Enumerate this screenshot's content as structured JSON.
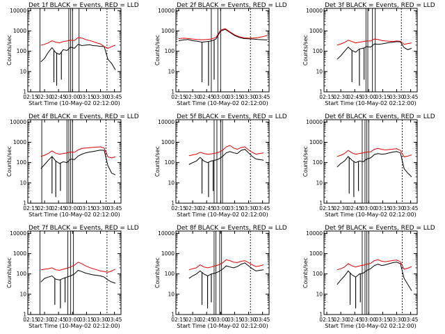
{
  "figure": {
    "xlabel": "Start Time (10-May-02 02:12:00)",
    "ylabel": "Counts/sec",
    "x_ticks": [
      "02:15",
      "02:30",
      "02:45",
      "03:00",
      "03:15",
      "03:30",
      "03:45"
    ],
    "y_ticks": [
      "1",
      "10",
      "100",
      "1000",
      "10000"
    ],
    "colors": {
      "events": "#000000",
      "lld": "#e00000",
      "axes": "#000000",
      "background": "#ffffff"
    }
  },
  "chart_data": [
    {
      "type": "line",
      "title": "Det 1f BLACK = Events, RED = LLD",
      "xlabel": "Start Time (10-May-02 02:12:00)",
      "ylabel": "Counts/sec",
      "x": [
        "02:26",
        "02:30",
        "02:34",
        "02:38",
        "02:42",
        "02:46",
        "02:50",
        "02:54",
        "02:58",
        "03:02",
        "03:06",
        "03:10",
        "03:14",
        "03:18",
        "03:22",
        "03:26",
        "03:30",
        "03:34",
        "03:38",
        "03:42",
        "03:46"
      ],
      "xlim": [
        "02:12",
        "03:52"
      ],
      "ylim": [
        1,
        13000
      ],
      "yscale": "log",
      "series": [
        {
          "name": "BLACK = Events",
          "color": "#000000",
          "values": [
            30,
            45,
            90,
            150,
            85,
            70,
            120,
            110,
            160,
            140,
            220,
            190,
            200,
            210,
            190,
            185,
            175,
            170,
            40,
            25,
            12
          ]
        },
        {
          "name": "RED = LLD",
          "color": "#e00000",
          "values": [
            200,
            220,
            260,
            330,
            280,
            260,
            300,
            320,
            350,
            340,
            470,
            450,
            380,
            340,
            300,
            260,
            230,
            170,
            140,
            170,
            200
          ]
        }
      ],
      "dips": {
        "events_minima": [
          "02:40",
          "02:43",
          "02:48"
        ]
      },
      "vertical_lines": [
        "02:25",
        "02:56",
        "02:58",
        "03:00",
        "03:07",
        "03:37"
      ],
      "grid": false
    },
    {
      "type": "line",
      "title": "Det 2f BLACK = Events, RED = LLD",
      "xlabel": "Start Time (10-May-02 02:12:00)",
      "ylabel": "Counts/sec",
      "x": [
        "02:15",
        "02:20",
        "02:25",
        "02:30",
        "02:35",
        "02:40",
        "02:45",
        "02:50",
        "02:55",
        "03:00",
        "03:05",
        "03:10",
        "03:15",
        "03:20",
        "03:25",
        "03:30",
        "03:35",
        "03:40",
        "03:45",
        "03:50"
      ],
      "xlim": [
        "02:12",
        "03:52"
      ],
      "ylim": [
        1,
        13000
      ],
      "yscale": "log",
      "series": [
        {
          "name": "BLACK = Events",
          "color": "#000000",
          "values": [
            330,
            360,
            380,
            330,
            310,
            280,
            300,
            320,
            400,
            1000,
            1200,
            850,
            600,
            480,
            420,
            410,
            400,
            380,
            370,
            360
          ]
        },
        {
          "name": "RED = LLD",
          "color": "#e00000",
          "values": [
            420,
            440,
            430,
            400,
            380,
            370,
            380,
            400,
            480,
            1100,
            1300,
            900,
            650,
            520,
            460,
            440,
            450,
            470,
            520,
            600
          ]
        }
      ],
      "dips": {
        "events_minima": [
          "02:40",
          "02:47",
          "02:53"
        ]
      },
      "vertical_lines": [
        "02:50",
        "02:57",
        "03:00",
        "03:32"
      ],
      "grid": false
    },
    {
      "type": "line",
      "title": "Det 3f BLACK = Events, RED = LLD",
      "xlabel": "Start Time (10-May-02 02:12:00)",
      "ylabel": "Counts/sec",
      "x": [
        "02:26",
        "02:30",
        "02:34",
        "02:38",
        "02:42",
        "02:46",
        "02:50",
        "02:54",
        "02:58",
        "03:02",
        "03:06",
        "03:10",
        "03:14",
        "03:18",
        "03:22",
        "03:26",
        "03:30",
        "03:34",
        "03:38",
        "03:42",
        "03:46"
      ],
      "xlim": [
        "02:12",
        "03:52"
      ],
      "ylim": [
        1,
        13000
      ],
      "yscale": "log",
      "series": [
        {
          "name": "BLACK = Events",
          "color": "#000000",
          "values": [
            40,
            60,
            100,
            160,
            110,
            90,
            130,
            140,
            170,
            160,
            230,
            220,
            230,
            250,
            270,
            280,
            300,
            290,
            150,
            120,
            140
          ]
        },
        {
          "name": "RED = LLD",
          "color": "#e00000",
          "values": [
            200,
            230,
            270,
            350,
            300,
            260,
            280,
            300,
            320,
            320,
            400,
            380,
            340,
            320,
            310,
            300,
            320,
            310,
            220,
            240,
            260
          ]
        }
      ],
      "dips": {
        "events_minima": [
          "02:42",
          "02:50",
          "02:55"
        ]
      },
      "vertical_lines": [
        "02:57",
        "02:59",
        "03:04",
        "03:07",
        "03:35"
      ],
      "grid": false
    },
    {
      "type": "line",
      "title": "Det 4f BLACK = Events, RED = LLD",
      "xlabel": "Start Time (10-May-02 02:12:00)",
      "ylabel": "Counts/sec",
      "x": [
        "02:26",
        "02:30",
        "02:34",
        "02:38",
        "02:42",
        "02:46",
        "02:50",
        "02:54",
        "02:58",
        "03:02",
        "03:06",
        "03:10",
        "03:14",
        "03:18",
        "03:22",
        "03:26",
        "03:30",
        "03:34",
        "03:38",
        "03:42",
        "03:46"
      ],
      "xlim": [
        "02:12",
        "03:52"
      ],
      "ylim": [
        1,
        13000
      ],
      "yscale": "log",
      "series": [
        {
          "name": "BLACK = Events",
          "color": "#000000",
          "values": [
            50,
            80,
            130,
            200,
            120,
            90,
            110,
            100,
            150,
            140,
            210,
            260,
            300,
            330,
            350,
            380,
            410,
            400,
            70,
            30,
            25
          ]
        },
        {
          "name": "RED = LLD",
          "color": "#e00000",
          "values": [
            200,
            230,
            280,
            380,
            290,
            260,
            280,
            300,
            330,
            320,
            420,
            500,
            520,
            540,
            560,
            580,
            600,
            520,
            190,
            170,
            190
          ]
        }
      ],
      "dips": {
        "events_minima": [
          "02:38",
          "02:42",
          "02:47"
        ]
      },
      "vertical_lines": [
        "02:27",
        "02:54",
        "02:56",
        "02:58",
        "03:00",
        "03:36"
      ],
      "grid": false
    },
    {
      "type": "line",
      "title": "Det 5f BLACK = Events, RED = LLD",
      "xlabel": "Start Time (10-May-02 02:12:00)",
      "ylabel": "Counts/sec",
      "x": [
        "02:26",
        "02:30",
        "02:34",
        "02:38",
        "02:42",
        "02:46",
        "02:50",
        "02:54",
        "02:58",
        "03:02",
        "03:06",
        "03:10",
        "03:14",
        "03:18",
        "03:22",
        "03:26",
        "03:30",
        "03:34",
        "03:38",
        "03:42",
        "03:46"
      ],
      "xlim": [
        "02:12",
        "03:52"
      ],
      "ylim": [
        1,
        13000
      ],
      "yscale": "log",
      "series": [
        {
          "name": "BLACK = Events",
          "color": "#000000",
          "values": [
            80,
            100,
            120,
            180,
            120,
            100,
            120,
            130,
            150,
            200,
            300,
            350,
            300,
            280,
            400,
            450,
            300,
            200,
            150,
            140,
            130
          ]
        },
        {
          "name": "RED = LLD",
          "color": "#e00000",
          "values": [
            220,
            240,
            260,
            320,
            280,
            260,
            270,
            290,
            320,
            400,
            600,
            700,
            520,
            450,
            550,
            600,
            420,
            320,
            260,
            280,
            300
          ]
        }
      ],
      "dips": {
        "events_minima": [
          "02:40",
          "02:47",
          "02:52"
        ]
      },
      "vertical_lines": [
        "02:53",
        "02:56",
        "03:00",
        "03:02",
        "03:32"
      ],
      "grid": false
    },
    {
      "type": "line",
      "title": "Det 6f BLACK = Events, RED = LLD",
      "xlabel": "Start Time (10-May-02 02:12:00)",
      "ylabel": "Counts/sec",
      "x": [
        "02:26",
        "02:30",
        "02:34",
        "02:38",
        "02:42",
        "02:46",
        "02:50",
        "02:54",
        "02:58",
        "03:02",
        "03:06",
        "03:10",
        "03:14",
        "03:18",
        "03:22",
        "03:26",
        "03:30",
        "03:34",
        "03:38",
        "03:42",
        "03:46"
      ],
      "xlim": [
        "02:12",
        "03:52"
      ],
      "ylim": [
        1,
        13000
      ],
      "yscale": "log",
      "series": [
        {
          "name": "BLACK = Events",
          "color": "#000000",
          "values": [
            60,
            90,
            120,
            200,
            130,
            100,
            120,
            110,
            150,
            170,
            250,
            280,
            260,
            270,
            300,
            330,
            350,
            300,
            50,
            30,
            20
          ]
        },
        {
          "name": "RED = LLD",
          "color": "#e00000",
          "values": [
            200,
            230,
            280,
            400,
            300,
            260,
            280,
            300,
            330,
            340,
            450,
            500,
            450,
            420,
            440,
            460,
            480,
            400,
            190,
            210,
            240
          ]
        }
      ],
      "dips": {
        "events_minima": [
          "02:39",
          "02:44",
          "02:49"
        ]
      },
      "vertical_lines": [
        "02:53",
        "02:56",
        "02:58",
        "03:00",
        "03:36"
      ],
      "grid": false
    },
    {
      "type": "line",
      "title": "Det 7f BLACK = Events, RED = LLD",
      "xlabel": "Start Time (10-May-02 02:12:00)",
      "ylabel": "Counts/sec",
      "x": [
        "02:26",
        "02:30",
        "02:34",
        "02:38",
        "02:42",
        "02:46",
        "02:50",
        "02:54",
        "02:58",
        "03:02",
        "03:06",
        "03:10",
        "03:14",
        "03:18",
        "03:22",
        "03:26",
        "03:30",
        "03:34",
        "03:38",
        "03:42",
        "03:46"
      ],
      "xlim": [
        "02:12",
        "03:52"
      ],
      "ylim": [
        1,
        13000
      ],
      "yscale": "log",
      "series": [
        {
          "name": "BLACK = Events",
          "color": "#000000",
          "values": [
            40,
            60,
            70,
            80,
            55,
            50,
            60,
            70,
            80,
            100,
            150,
            130,
            110,
            100,
            90,
            85,
            80,
            70,
            50,
            40,
            35
          ]
        },
        {
          "name": "RED = LLD",
          "color": "#e00000",
          "values": [
            160,
            170,
            180,
            200,
            160,
            150,
            170,
            190,
            220,
            270,
            380,
            320,
            250,
            210,
            180,
            160,
            140,
            130,
            120,
            140,
            170
          ]
        }
      ],
      "dips": {
        "events_minima": [
          "02:41",
          "02:47",
          "02:52"
        ]
      },
      "vertical_lines": [
        "02:25",
        "02:55",
        "02:58",
        "03:01",
        "03:37"
      ],
      "grid": false
    },
    {
      "type": "line",
      "title": "Det 8f BLACK = Events, RED = LLD",
      "xlabel": "Start Time (10-May-02 02:12:00)",
      "ylabel": "Counts/sec",
      "x": [
        "02:26",
        "02:30",
        "02:34",
        "02:38",
        "02:42",
        "02:46",
        "02:50",
        "02:54",
        "02:58",
        "03:02",
        "03:06",
        "03:10",
        "03:14",
        "03:18",
        "03:22",
        "03:26",
        "03:30",
        "03:34",
        "03:38",
        "03:42",
        "03:46"
      ],
      "xlim": [
        "02:12",
        "03:52"
      ],
      "ylim": [
        1,
        13000
      ],
      "yscale": "log",
      "series": [
        {
          "name": "BLACK = Events",
          "color": "#000000",
          "values": [
            60,
            80,
            100,
            140,
            100,
            80,
            100,
            110,
            130,
            170,
            250,
            220,
            200,
            230,
            300,
            350,
            250,
            180,
            140,
            150,
            160
          ]
        },
        {
          "name": "RED = LLD",
          "color": "#e00000",
          "values": [
            160,
            180,
            200,
            280,
            220,
            200,
            220,
            250,
            280,
            350,
            500,
            450,
            380,
            360,
            420,
            450,
            360,
            280,
            230,
            250,
            280
          ]
        }
      ],
      "dips": {
        "events_minima": [
          "02:40",
          "02:46",
          "02:50"
        ]
      },
      "vertical_lines": [
        "02:53",
        "02:55",
        "02:59",
        "03:01",
        "03:32"
      ],
      "grid": false
    },
    {
      "type": "line",
      "title": "Det 9f BLACK = Events, RED = LLD",
      "xlabel": "Start Time (10-May-02 02:12:00)",
      "ylabel": "Counts/sec",
      "x": [
        "02:26",
        "02:30",
        "02:34",
        "02:38",
        "02:42",
        "02:46",
        "02:50",
        "02:54",
        "02:58",
        "03:02",
        "03:06",
        "03:10",
        "03:14",
        "03:18",
        "03:22",
        "03:26",
        "03:30",
        "03:34",
        "03:38",
        "03:42",
        "03:46"
      ],
      "xlim": [
        "02:12",
        "03:52"
      ],
      "ylim": [
        1,
        13000
      ],
      "yscale": "log",
      "series": [
        {
          "name": "BLACK = Events",
          "color": "#000000",
          "values": [
            30,
            50,
            80,
            140,
            90,
            70,
            100,
            110,
            150,
            180,
            260,
            300,
            260,
            280,
            320,
            360,
            380,
            320,
            60,
            30,
            15
          ]
        },
        {
          "name": "RED = LLD",
          "color": "#e00000",
          "values": [
            160,
            180,
            220,
            320,
            250,
            220,
            250,
            270,
            300,
            330,
            450,
            500,
            420,
            400,
            430,
            460,
            480,
            400,
            170,
            190,
            230
          ]
        }
      ],
      "dips": {
        "events_minima": [
          "02:40",
          "02:46",
          "02:51"
        ]
      },
      "vertical_lines": [
        "02:53",
        "02:56",
        "02:58",
        "03:00",
        "03:36"
      ],
      "grid": false
    }
  ]
}
